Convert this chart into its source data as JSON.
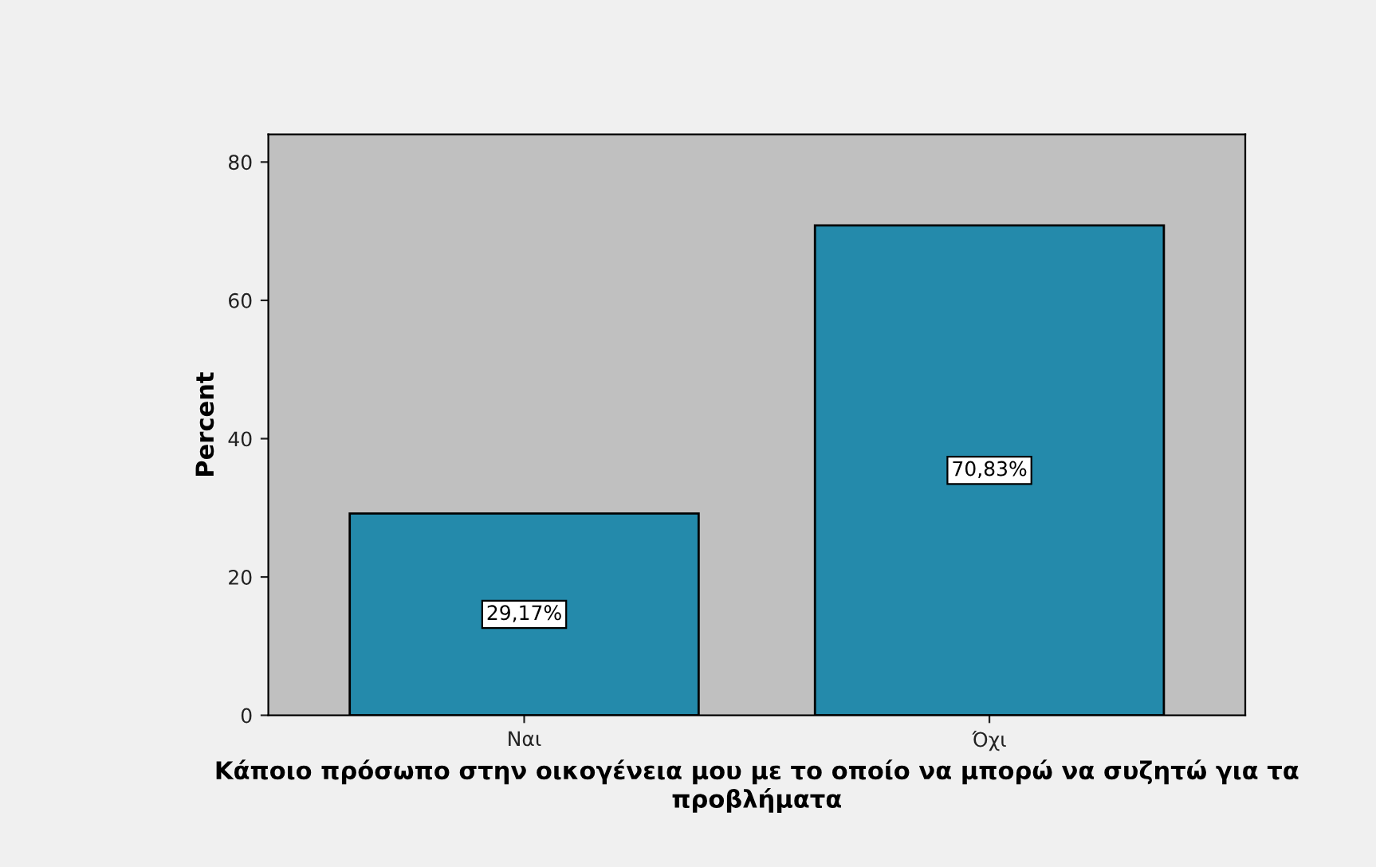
{
  "chart_data": {
    "type": "bar",
    "xlabel": "Κάποιο πρόσωπο στην οικογένεια μου με το οποίο να μπορώ να συζητώ για τα προβλήματα",
    "ylabel": "Percent",
    "categories": [
      "Ναι",
      "Όχι"
    ],
    "values": [
      29.17,
      70.83
    ],
    "value_labels": [
      "29,17%",
      "70,83%"
    ],
    "color": "#248aab",
    "ylim": [
      0,
      84
    ],
    "yticks": [
      0,
      20,
      40,
      60,
      80
    ],
    "grid": false,
    "legend": false
  }
}
